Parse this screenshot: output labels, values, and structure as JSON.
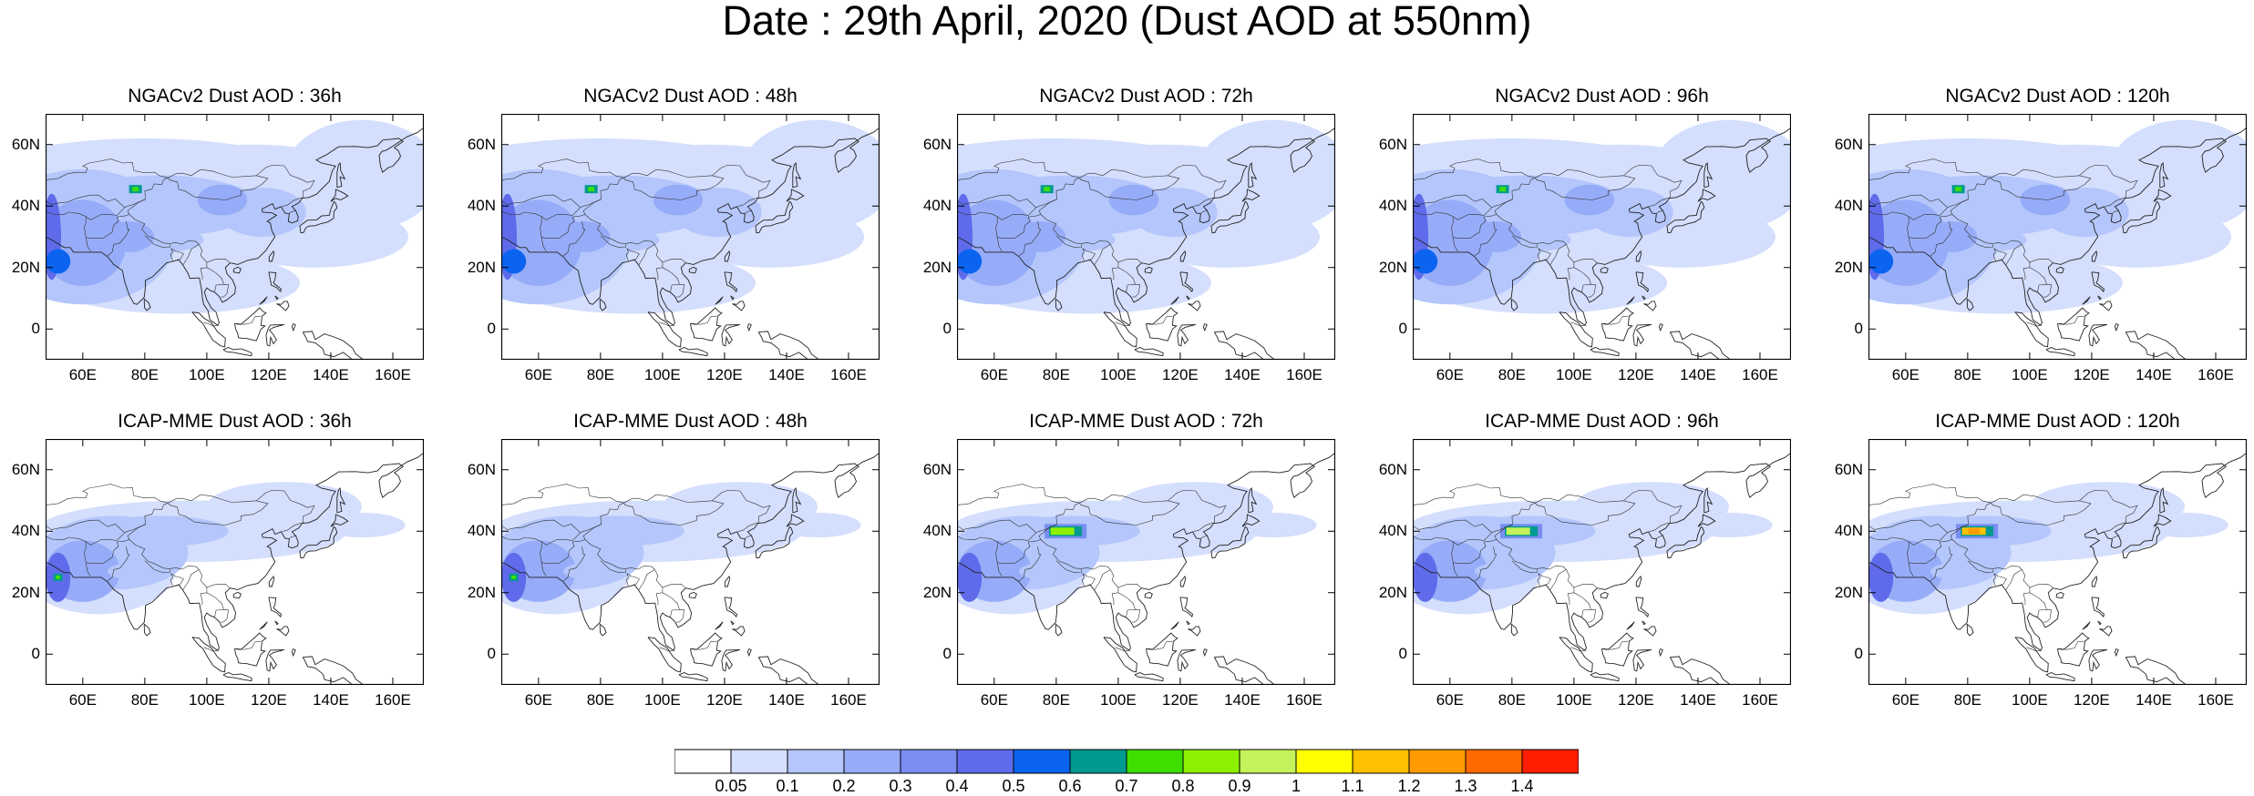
{
  "title": "Date : 29th April, 2020 (Dust AOD at 550nm)",
  "panels": [
    {
      "title": "NGACv2 Dust AOD : 36h",
      "model": "ngac"
    },
    {
      "title": "NGACv2 Dust AOD : 48h",
      "model": "ngac"
    },
    {
      "title": "NGACv2 Dust AOD : 72h",
      "model": "ngac"
    },
    {
      "title": "NGACv2 Dust AOD : 96h",
      "model": "ngac"
    },
    {
      "title": "NGACv2 Dust AOD : 120h",
      "model": "ngac"
    },
    {
      "title": "ICAP-MME Dust AOD : 36h",
      "model": "icap",
      "hotspot": "west"
    },
    {
      "title": "ICAP-MME Dust AOD : 48h",
      "model": "icap",
      "hotspot": "west"
    },
    {
      "title": "ICAP-MME Dust AOD : 72h",
      "model": "icap",
      "hotspot": "tarim",
      "level": 0.8
    },
    {
      "title": "ICAP-MME Dust AOD : 96h",
      "model": "icap",
      "hotspot": "tarim",
      "level": 1.0
    },
    {
      "title": "ICAP-MME Dust AOD : 120h",
      "model": "icap",
      "hotspot": "tarim",
      "level": 1.2
    }
  ],
  "axes": {
    "x_ticks": [
      "60E",
      "80E",
      "100E",
      "120E",
      "140E",
      "160E"
    ],
    "x_tick_values": [
      60,
      80,
      100,
      120,
      140,
      160
    ],
    "x_range": [
      48,
      170
    ],
    "y_ticks": [
      "60N",
      "40N",
      "20N",
      "0"
    ],
    "y_tick_values": [
      60,
      40,
      20,
      0
    ],
    "y_range": [
      -10,
      70
    ]
  },
  "colorbar": {
    "labels": [
      "0.05",
      "0.1",
      "0.2",
      "0.3",
      "0.4",
      "0.5",
      "0.6",
      "0.7",
      "0.8",
      "0.9",
      "1",
      "1.1",
      "1.2",
      "1.3",
      "1.4"
    ],
    "colors": [
      "#ffffff",
      "#d4defd",
      "#b4c6fb",
      "#96acf8",
      "#7a8ef2",
      "#5f6bea",
      "#0a64f0",
      "#009a90",
      "#3dde00",
      "#8cf000",
      "#c4f25a",
      "#ffff00",
      "#ffc000",
      "#ff9a00",
      "#ff6a00",
      "#ff1e00"
    ]
  }
}
